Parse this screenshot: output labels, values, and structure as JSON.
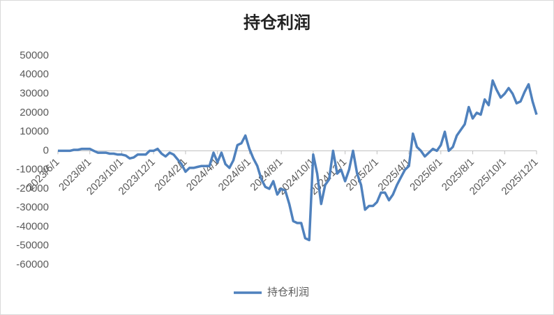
{
  "chart_data": {
    "type": "line",
    "title": "持仓利润",
    "categories": [
      "2023/6/1",
      null,
      null,
      null,
      null,
      null,
      null,
      null,
      "2023/8/1",
      null,
      null,
      null,
      null,
      null,
      null,
      null,
      "2023/10/1",
      null,
      null,
      null,
      null,
      null,
      null,
      null,
      "2023/12/1",
      null,
      null,
      null,
      null,
      null,
      null,
      null,
      "2024/2/1",
      null,
      null,
      null,
      null,
      null,
      null,
      null,
      "2024/4/1",
      null,
      null,
      null,
      null,
      null,
      null,
      null,
      "2024/6/1",
      null,
      null,
      null,
      null,
      null,
      null,
      null,
      "2024/8/1",
      null,
      null,
      null,
      null,
      null,
      null,
      null,
      "2024/10/1",
      null,
      null,
      null,
      null,
      null,
      null,
      null,
      "2024/12/1",
      null,
      null,
      null,
      null,
      null,
      null,
      null,
      "2025/2/1",
      null,
      null,
      null,
      null,
      null,
      null,
      null,
      "2025/4/1",
      null,
      null,
      null,
      null,
      null,
      null,
      null,
      "2025/6/1",
      null,
      null,
      null,
      null,
      null,
      null,
      null,
      "2025/8/1",
      null,
      null,
      null,
      null,
      null,
      null,
      null,
      "2025/10/1",
      null,
      null,
      null,
      null,
      null,
      null,
      null,
      "2025/12/1"
    ],
    "series": [
      {
        "name": "持仓利润",
        "color": "#4f81bd",
        "values": [
          0,
          0,
          0,
          0,
          500,
          500,
          1000,
          1000,
          1000,
          0,
          -1000,
          -1000,
          -1000,
          -1500,
          -1500,
          -2000,
          -2000,
          -2500,
          -4000,
          -3500,
          -2000,
          -2000,
          -2000,
          0,
          0,
          1000,
          -1500,
          -3000,
          -1000,
          -2000,
          -4500,
          -7000,
          -11000,
          -9000,
          -9000,
          -8500,
          -8000,
          -8000,
          -8000,
          -1000,
          -6000,
          -1000,
          -7000,
          -9000,
          -5000,
          3000,
          4000,
          8000,
          1000,
          -4000,
          -8000,
          -15000,
          -19000,
          -20000,
          -16000,
          -23000,
          -20000,
          -21000,
          -28000,
          -37000,
          -38000,
          -38000,
          -46000,
          -47000,
          -2000,
          -12000,
          -28000,
          -18000,
          -15000,
          0,
          -12000,
          -10000,
          -16000,
          -10000,
          0,
          -12000,
          -18000,
          -31000,
          -29000,
          -29000,
          -27000,
          -22000,
          -22000,
          -26000,
          -23000,
          -18000,
          -14000,
          -10000,
          -8000,
          9000,
          2000,
          0,
          -3000,
          -1000,
          1000,
          0,
          3000,
          10000,
          0,
          2000,
          8000,
          11000,
          14000,
          23000,
          17000,
          20000,
          19000,
          27000,
          24000,
          37000,
          32000,
          28000,
          30000,
          33000,
          30000,
          25000,
          26000,
          31000,
          35000,
          26000,
          19000
        ]
      }
    ],
    "ylim": [
      -60000,
      50000
    ],
    "yticks": [
      -60000,
      -50000,
      -40000,
      -30000,
      -20000,
      -10000,
      0,
      10000,
      20000,
      30000,
      40000,
      50000
    ],
    "grid": false,
    "legend": "bottom"
  }
}
